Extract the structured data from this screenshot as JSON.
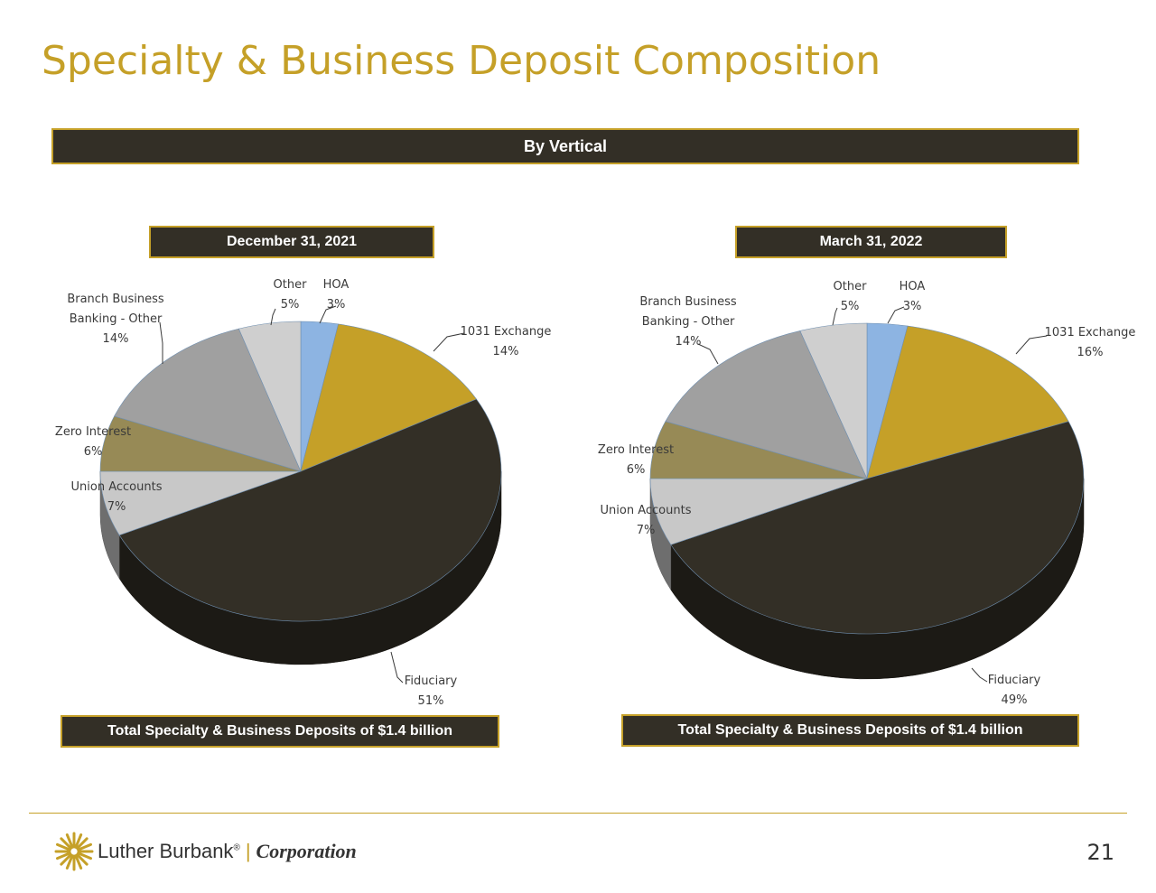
{
  "title": "Specialty & Business Deposit Composition",
  "section_band": "By Vertical",
  "footer": {
    "brand": "Luther Burbank",
    "registered": "®",
    "corporation": "Corporation",
    "page_number": "21"
  },
  "colors": {
    "gold": "#C5A028",
    "dark": "#332F26"
  },
  "chart_data": [
    {
      "type": "pie",
      "title": "December 31, 2021",
      "footnote": "Total Specialty & Business Deposits of $1.4 billion",
      "slices": [
        {
          "label": "HOA",
          "value": 3,
          "value_label": "3%",
          "color": "#8DB4E2"
        },
        {
          "label": "1031 Exchange",
          "value": 14,
          "value_label": "14%",
          "color": "#C5A028"
        },
        {
          "label": "Fiduciary",
          "value": 51,
          "value_label": "51%",
          "color": "#332F26"
        },
        {
          "label": "Union Accounts",
          "value": 7,
          "value_label": "7%",
          "color": "#C8C8C8"
        },
        {
          "label": "Zero Interest",
          "value": 6,
          "value_label": "6%",
          "color": "#978A56"
        },
        {
          "label": "Branch Business Banking - Other",
          "label_lines": [
            "Branch Business",
            "Banking  - Other"
          ],
          "value": 14,
          "value_label": "14%",
          "color": "#A0A0A0"
        },
        {
          "label": "Other",
          "value": 5,
          "value_label": "5%",
          "color": "#CFCFCF"
        }
      ]
    },
    {
      "type": "pie",
      "title": "March 31, 2022",
      "footnote": "Total Specialty & Business Deposits of $1.4 billion",
      "slices": [
        {
          "label": "HOA",
          "value": 3,
          "value_label": "3%",
          "color": "#8DB4E2"
        },
        {
          "label": "1031 Exchange",
          "value": 16,
          "value_label": "16%",
          "color": "#C5A028"
        },
        {
          "label": "Fiduciary",
          "value": 49,
          "value_label": "49%",
          "color": "#332F26"
        },
        {
          "label": "Union Accounts",
          "value": 7,
          "value_label": "7%",
          "color": "#C8C8C8"
        },
        {
          "label": "Zero Interest",
          "value": 6,
          "value_label": "6%",
          "color": "#978A56"
        },
        {
          "label": "Branch Business Banking - Other",
          "label_lines": [
            "Branch Business",
            "Banking  - Other"
          ],
          "value": 14,
          "value_label": "14%",
          "color": "#A0A0A0"
        },
        {
          "label": "Other",
          "value": 5,
          "value_label": "5%",
          "color": "#CFCFCF"
        }
      ]
    }
  ]
}
